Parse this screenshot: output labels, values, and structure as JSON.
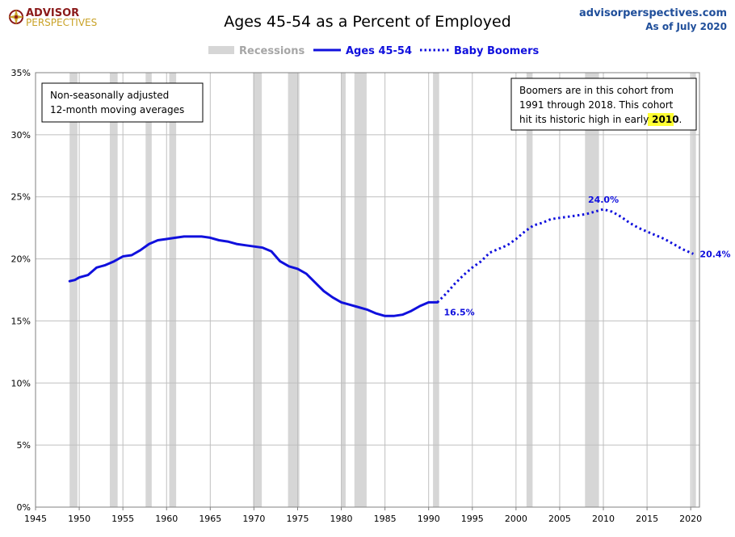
{
  "logo": {
    "line1": "ADVISOR",
    "line2": "PERSPECTIVES"
  },
  "source": {
    "site": "advisorperspectives.com",
    "date": "As of July 2020"
  },
  "colors": {
    "series": "#1010dd",
    "recession": "#d6d6d6",
    "grid": "#bfbfbf",
    "logo_red": "#8b1a1a",
    "logo_gold": "#c9a227",
    "source_blue": "#1f4e9a",
    "highlight": "#ffff33"
  },
  "annotations": {
    "left_box": {
      "line1": "Non-seasonally adjusted",
      "line2": "12-month moving averages"
    },
    "right_box": {
      "line1": "Boomers are in this cohort from",
      "line2": "1991  through 2018.  This cohort",
      "line3_prefix": "hit its historic high in early ",
      "line3_highlight": "2010",
      "line3_suffix": "."
    }
  },
  "chart_data": {
    "type": "line",
    "title": "Ages 45-54 as a Percent of Employed",
    "xlabel": "",
    "ylabel": "",
    "xlim": [
      1945,
      2021
    ],
    "ylim": [
      0,
      35
    ],
    "x_ticks": [
      "1945",
      "1950",
      "1955",
      "1960",
      "1965",
      "1970",
      "1975",
      "1980",
      "1985",
      "1990",
      "1995",
      "2000",
      "2005",
      "2010",
      "2015",
      "2020"
    ],
    "y_ticks": [
      "0%",
      "5%",
      "10%",
      "15%",
      "20%",
      "25%",
      "30%",
      "35%"
    ],
    "grid": true,
    "legend_position": "top-center",
    "legend": [
      {
        "label": "Recessions",
        "style": "band"
      },
      {
        "label": "Ages 45-54",
        "style": "solid"
      },
      {
        "label": "Baby Boomers",
        "style": "dotted"
      }
    ],
    "recessions": [
      [
        1948.9,
        1949.8
      ],
      [
        1953.5,
        1954.4
      ],
      [
        1957.6,
        1958.3
      ],
      [
        1960.3,
        1961.1
      ],
      [
        1969.9,
        1970.9
      ],
      [
        1973.9,
        1975.2
      ],
      [
        1980.0,
        1980.5
      ],
      [
        1981.5,
        1982.9
      ],
      [
        1990.5,
        1991.2
      ],
      [
        2001.2,
        2001.9
      ],
      [
        2007.9,
        2009.5
      ],
      [
        2020.1,
        2020.6
      ]
    ],
    "series": [
      {
        "name": "Ages 45-54",
        "style": "solid",
        "points": [
          [
            1948.9,
            18.2
          ],
          [
            1949.5,
            18.3
          ],
          [
            1950,
            18.5
          ],
          [
            1951,
            18.7
          ],
          [
            1952,
            19.3
          ],
          [
            1953,
            19.5
          ],
          [
            1954,
            19.8
          ],
          [
            1955,
            20.2
          ],
          [
            1956,
            20.3
          ],
          [
            1957,
            20.7
          ],
          [
            1958,
            21.2
          ],
          [
            1959,
            21.5
          ],
          [
            1960,
            21.6
          ],
          [
            1961,
            21.7
          ],
          [
            1962,
            21.8
          ],
          [
            1963,
            21.8
          ],
          [
            1964,
            21.8
          ],
          [
            1965,
            21.7
          ],
          [
            1966,
            21.5
          ],
          [
            1967,
            21.4
          ],
          [
            1968,
            21.2
          ],
          [
            1969,
            21.1
          ],
          [
            1970,
            21.0
          ],
          [
            1971,
            20.9
          ],
          [
            1972,
            20.6
          ],
          [
            1973,
            19.8
          ],
          [
            1974,
            19.4
          ],
          [
            1975,
            19.2
          ],
          [
            1976,
            18.8
          ],
          [
            1977,
            18.1
          ],
          [
            1978,
            17.4
          ],
          [
            1979,
            16.9
          ],
          [
            1980,
            16.5
          ],
          [
            1981,
            16.3
          ],
          [
            1982,
            16.1
          ],
          [
            1983,
            15.9
          ],
          [
            1984,
            15.6
          ],
          [
            1985,
            15.4
          ],
          [
            1986,
            15.4
          ],
          [
            1987,
            15.5
          ],
          [
            1988,
            15.8
          ],
          [
            1989,
            16.2
          ],
          [
            1990,
            16.5
          ],
          [
            1991,
            16.5
          ]
        ]
      },
      {
        "name": "Baby Boomers",
        "style": "dotted",
        "points": [
          [
            1991,
            16.5
          ],
          [
            1992,
            17.2
          ],
          [
            1993,
            18.0
          ],
          [
            1994,
            18.7
          ],
          [
            1995,
            19.3
          ],
          [
            1996,
            19.8
          ],
          [
            1997,
            20.5
          ],
          [
            1998,
            20.8
          ],
          [
            1999,
            21.1
          ],
          [
            2000,
            21.6
          ],
          [
            2001,
            22.2
          ],
          [
            2002,
            22.7
          ],
          [
            2003,
            22.9
          ],
          [
            2004,
            23.2
          ],
          [
            2005,
            23.3
          ],
          [
            2006,
            23.4
          ],
          [
            2007,
            23.5
          ],
          [
            2008,
            23.6
          ],
          [
            2009,
            23.8
          ],
          [
            2010,
            24.0
          ],
          [
            2011,
            23.8
          ],
          [
            2012,
            23.4
          ],
          [
            2013,
            22.9
          ],
          [
            2014,
            22.5
          ],
          [
            2015,
            22.2
          ],
          [
            2016,
            21.9
          ],
          [
            2017,
            21.6
          ],
          [
            2018,
            21.2
          ],
          [
            2019,
            20.8
          ],
          [
            2020.3,
            20.4
          ]
        ]
      }
    ],
    "data_labels": [
      {
        "x": 1991,
        "y": 16.5,
        "text": "16.5%"
      },
      {
        "x": 2010,
        "y": 24.0,
        "text": "24.0%"
      },
      {
        "x": 2020.3,
        "y": 20.4,
        "text": "20.4%"
      }
    ]
  }
}
